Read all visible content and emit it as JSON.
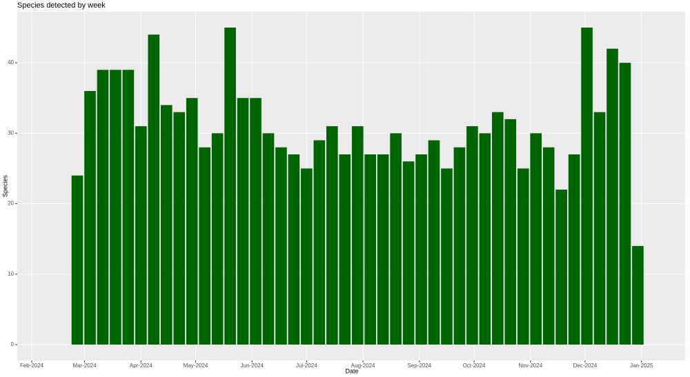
{
  "chart_data": {
    "type": "bar",
    "title": "Species detected by week",
    "x_label": "Date",
    "y_label": "Species",
    "x": [
      "2024-02-26",
      "2024-03-04",
      "2024-03-11",
      "2024-03-18",
      "2024-03-25",
      "2024-04-01",
      "2024-04-08",
      "2024-04-15",
      "2024-04-22",
      "2024-04-29",
      "2024-05-06",
      "2024-05-13",
      "2024-05-20",
      "2024-05-27",
      "2024-06-03",
      "2024-06-10",
      "2024-06-17",
      "2024-06-24",
      "2024-07-01",
      "2024-07-08",
      "2024-07-15",
      "2024-07-22",
      "2024-07-29",
      "2024-08-05",
      "2024-08-12",
      "2024-08-19",
      "2024-08-26",
      "2024-09-02",
      "2024-09-09",
      "2024-09-16",
      "2024-09-23",
      "2024-09-30",
      "2024-10-07",
      "2024-10-14",
      "2024-10-21",
      "2024-10-28",
      "2024-11-04",
      "2024-11-11",
      "2024-11-18",
      "2024-11-25",
      "2024-12-02",
      "2024-12-09",
      "2024-12-16",
      "2024-12-23",
      "2024-12-30"
    ],
    "values": [
      24,
      36,
      39,
      39,
      39,
      31,
      44,
      34,
      33,
      35,
      28,
      30,
      45,
      35,
      35,
      30,
      28,
      27,
      25,
      29,
      31,
      27,
      31,
      27,
      27,
      30,
      26,
      27,
      29,
      25,
      28,
      31,
      30,
      33,
      32,
      25,
      30,
      28,
      22,
      27,
      45,
      33,
      42,
      40,
      14
    ],
    "color": "#006400",
    "xlim": [
      "2024-01-24",
      "2025-01-25"
    ],
    "xticks": [
      {
        "value": "2024-02-01",
        "label": "Feb-2024"
      },
      {
        "value": "2024-03-01",
        "label": "Mar-2024"
      },
      {
        "value": "2024-04-01",
        "label": "Apr-2024"
      },
      {
        "value": "2024-05-01",
        "label": "May-2024"
      },
      {
        "value": "2024-06-01",
        "label": "Jun-2024"
      },
      {
        "value": "2024-07-01",
        "label": "Jul-2024"
      },
      {
        "value": "2024-08-01",
        "label": "Aug-2024"
      },
      {
        "value": "2024-09-01",
        "label": "Sep-2024"
      },
      {
        "value": "2024-10-01",
        "label": "Oct-2024"
      },
      {
        "value": "2024-11-01",
        "label": "Nov-2024"
      },
      {
        "value": "2024-12-01",
        "label": "Dec-2024"
      },
      {
        "value": "2025-01-01",
        "label": "Jan-2025"
      }
    ],
    "ylim": [
      -2.25,
      47.25
    ],
    "yticks": [
      0,
      10,
      20,
      30,
      40
    ],
    "grid": true
  }
}
